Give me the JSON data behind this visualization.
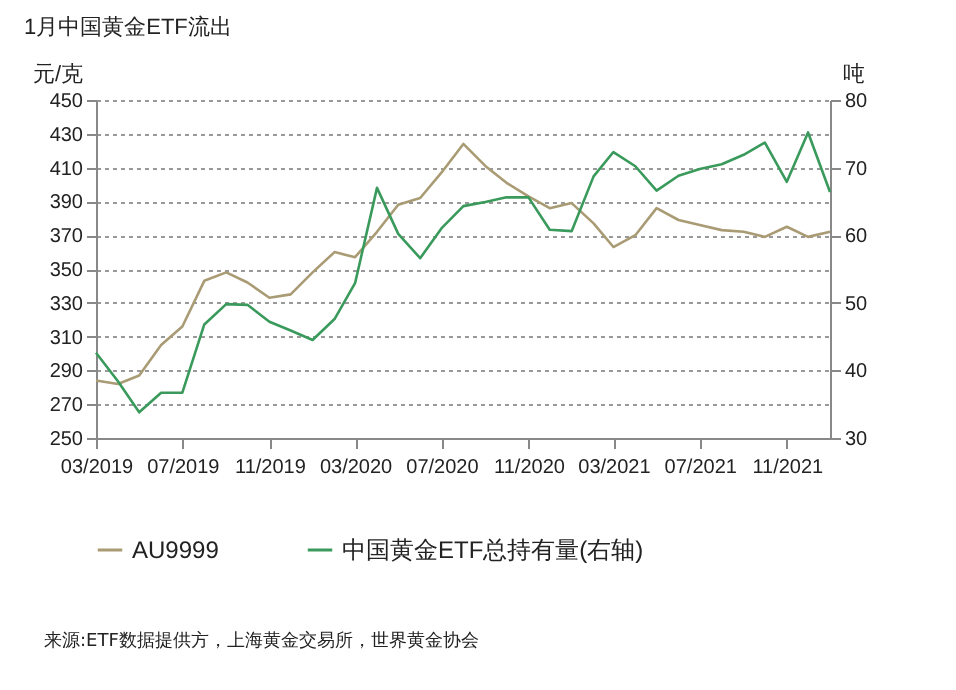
{
  "chart_data": {
    "type": "line",
    "title": "1月中国黄金ETF流出",
    "ylabel": "元/克",
    "y2label": "吨",
    "x": [
      "2019-03",
      "2019-04",
      "2019-05",
      "2019-06",
      "2019-07",
      "2019-08",
      "2019-09",
      "2019-10",
      "2019-11",
      "2019-12",
      "2020-01",
      "2020-02",
      "2020-03",
      "2020-04",
      "2020-05",
      "2020-06",
      "2020-07",
      "2020-08",
      "2020-09",
      "2020-10",
      "2020-11",
      "2020-12",
      "2021-01",
      "2021-02",
      "2021-03",
      "2021-04",
      "2021-05",
      "2021-06",
      "2021-07",
      "2021-08",
      "2021-09",
      "2021-10",
      "2021-11",
      "2021-12",
      "2022-01"
    ],
    "series": [
      {
        "name": "AU9999",
        "color": "#a99b74",
        "values": [
          284,
          282,
          287,
          305,
          316,
          343,
          348,
          342,
          333,
          335,
          348,
          360,
          357,
          372,
          388,
          392,
          407,
          424,
          411,
          401,
          393,
          386,
          389,
          377,
          363,
          370,
          386,
          379,
          376,
          373,
          372,
          369,
          375,
          369,
          372
        ]
      },
      {
        "name": "中国黄金ETF总持有量(右轴)",
        "color": "#3a9a5c",
        "axis": "y2",
        "values": [
          42.6,
          38.4,
          33.8,
          36.7,
          36.7,
          46.8,
          49.8,
          49.7,
          47.2,
          45.9,
          44.5,
          47.6,
          52.9,
          67.0,
          60.2,
          56.6,
          61.0,
          64.3,
          64.9,
          65.6,
          65.6,
          60.8,
          60.6,
          68.7,
          72.3,
          70.2,
          66.6,
          68.8,
          69.8,
          70.5,
          71.9,
          73.7,
          67.9,
          75.2,
          66.4
        ]
      }
    ],
    "xlim": [
      "2019-03",
      "2022-01"
    ],
    "xticks": [
      {
        "value": "2019-03",
        "label": "03/2019"
      },
      {
        "value": "2019-07",
        "label": "07/2019"
      },
      {
        "value": "2019-11",
        "label": "11/2019"
      },
      {
        "value": "2020-03",
        "label": "03/2020"
      },
      {
        "value": "2020-07",
        "label": "07/2020"
      },
      {
        "value": "2020-11",
        "label": "11/2020"
      },
      {
        "value": "2021-03",
        "label": "03/2021"
      },
      {
        "value": "2021-07",
        "label": "07/2021"
      },
      {
        "value": "2021-11",
        "label": "11/2021"
      }
    ],
    "ylim": [
      250,
      450
    ],
    "yticks": [
      250,
      270,
      290,
      310,
      330,
      350,
      370,
      390,
      410,
      430,
      450
    ],
    "y2lim": [
      30,
      80
    ],
    "y2ticks": [
      30,
      40,
      50,
      60,
      70,
      80
    ],
    "grid": "y",
    "legend": "bottom",
    "marker": "none",
    "line_style": "solid",
    "annotations": [
      "来源:ETF数据提供方，上海黄金交易所，世界黄金协会"
    ]
  }
}
